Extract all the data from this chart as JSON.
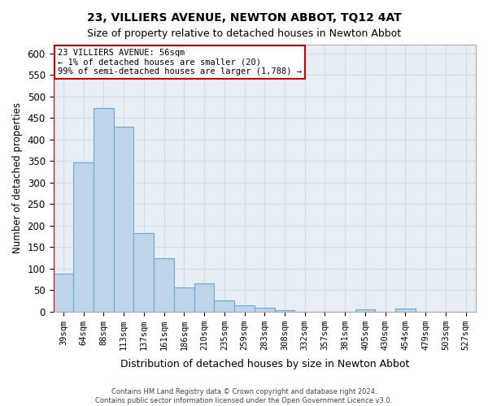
{
  "title": "23, VILLIERS AVENUE, NEWTON ABBOT, TQ12 4AT",
  "subtitle": "Size of property relative to detached houses in Newton Abbot",
  "xlabel": "Distribution of detached houses by size in Newton Abbot",
  "ylabel": "Number of detached properties",
  "footer1": "Contains HM Land Registry data © Crown copyright and database right 2024.",
  "footer2": "Contains public sector information licensed under the Open Government Licence v3.0.",
  "categories": [
    "39sqm",
    "64sqm",
    "88sqm",
    "113sqm",
    "137sqm",
    "161sqm",
    "186sqm",
    "210sqm",
    "235sqm",
    "259sqm",
    "283sqm",
    "308sqm",
    "332sqm",
    "357sqm",
    "381sqm",
    "405sqm",
    "430sqm",
    "454sqm",
    "479sqm",
    "503sqm",
    "527sqm"
  ],
  "values": [
    88,
    347,
    473,
    430,
    183,
    124,
    56,
    66,
    26,
    14,
    8,
    4,
    0,
    0,
    0,
    5,
    0,
    6,
    0,
    0,
    0
  ],
  "bar_color": "#bed4ea",
  "bar_edge_color": "#6aaad4",
  "grid_color": "#cfdce8",
  "bg_color": "#e8eef5",
  "annotation_line_color": "#cc0000",
  "annotation_box_edgecolor": "#cc0000",
  "annotation_text_line1": "23 VILLIERS AVENUE: 56sqm",
  "annotation_text_line2": "← 1% of detached houses are smaller (20)",
  "annotation_text_line3": "99% of semi-detached houses are larger (1,788) →",
  "ylim_max": 620,
  "yticks": [
    0,
    50,
    100,
    150,
    200,
    250,
    300,
    350,
    400,
    450,
    500,
    550,
    600
  ],
  "red_line_x": -0.5,
  "title_fontsize": 10,
  "subtitle_fontsize": 9
}
